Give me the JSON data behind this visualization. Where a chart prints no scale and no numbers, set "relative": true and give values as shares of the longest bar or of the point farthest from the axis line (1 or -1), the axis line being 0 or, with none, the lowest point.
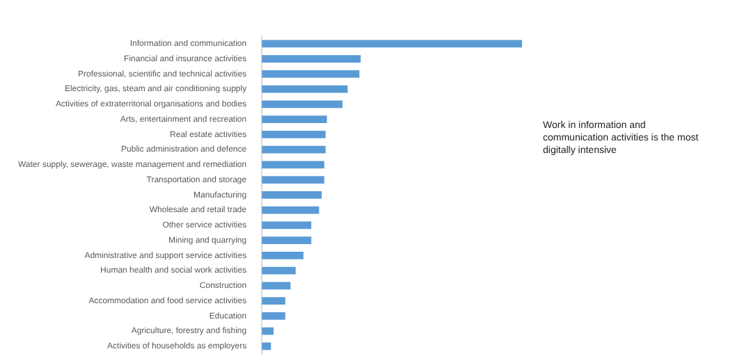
{
  "chart_data": {
    "type": "bar",
    "orientation": "horizontal",
    "relative": true,
    "color": "#5b9bd5",
    "categories": [
      "Information and communication",
      "Financial and insurance activities",
      "Professional, scientific and technical activities",
      "Electricity, gas, steam and air conditioning supply",
      "Activities of extraterritorial organisations and bodies",
      "Arts, entertainment and recreation",
      "Real estate activities",
      "Public administration and defence",
      "Water supply, sewerage, waste management and remediation",
      "Transportation and storage",
      "Manufacturing",
      "Wholesale and retail trade",
      "Other service activities",
      "Mining and quarrying",
      "Administrative and support service activities",
      "Human health and social work activities",
      "Construction",
      "Accommodation and food service activities",
      "Education",
      "Agriculture, forestry and fishing",
      "Activities of households as employers"
    ],
    "values": [
      1,
      0.38,
      0.375,
      0.33,
      0.31,
      0.25,
      0.245,
      0.245,
      0.24,
      0.24,
      0.23,
      0.22,
      0.19,
      0.19,
      0.16,
      0.13,
      0.11,
      0.09,
      0.09,
      0.045,
      0.035
    ],
    "annotations": [
      "Work in information and communication activities is the most digitally intensive"
    ]
  }
}
